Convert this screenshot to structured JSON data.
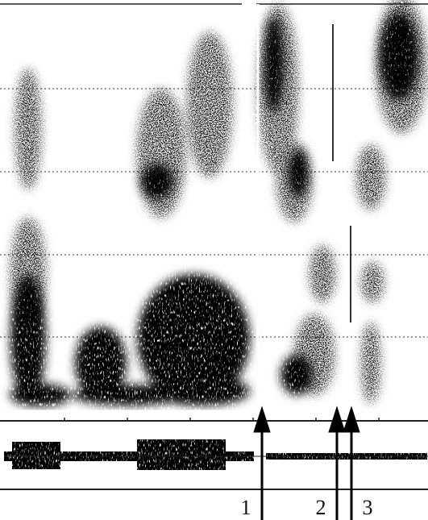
{
  "arrows": [
    {
      "label": "1"
    },
    {
      "label": "2"
    },
    {
      "label": "3"
    }
  ]
}
